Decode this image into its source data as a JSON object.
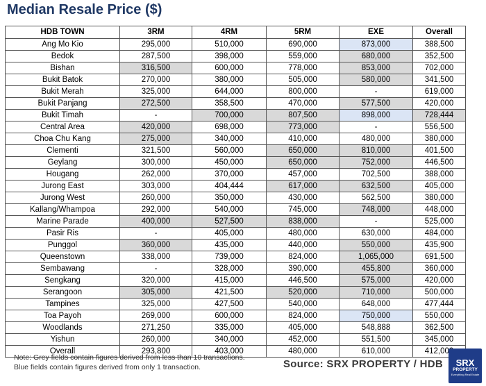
{
  "title": "Median Resale Price ($)",
  "headers": [
    "HDB TOWN",
    "3RM",
    "4RM",
    "5RM",
    "EXE",
    "Overall"
  ],
  "rows": [
    {
      "cells": [
        "Ang Mo Kio",
        "295,000",
        "510,000",
        "690,000",
        "873,000",
        "388,500"
      ],
      "shade": [
        "",
        "",
        "",
        "",
        "blue",
        ""
      ]
    },
    {
      "cells": [
        "Bedok",
        "287,500",
        "398,000",
        "559,000",
        "680,000",
        "352,500"
      ],
      "shade": [
        "",
        "",
        "",
        "",
        "grey",
        ""
      ]
    },
    {
      "cells": [
        "Bishan",
        "316,500",
        "600,000",
        "778,000",
        "853,000",
        "702,000"
      ],
      "shade": [
        "",
        "grey",
        "",
        "",
        "grey",
        ""
      ]
    },
    {
      "cells": [
        "Bukit Batok",
        "270,000",
        "380,000",
        "505,000",
        "580,000",
        "341,500"
      ],
      "shade": [
        "",
        "",
        "",
        "",
        "grey",
        ""
      ]
    },
    {
      "cells": [
        "Bukit Merah",
        "325,000",
        "644,000",
        "800,000",
        "-",
        "619,000"
      ],
      "shade": [
        "",
        "",
        "",
        "",
        "",
        ""
      ]
    },
    {
      "cells": [
        "Bukit Panjang",
        "272,500",
        "358,500",
        "470,000",
        "577,500",
        "420,000"
      ],
      "shade": [
        "",
        "grey",
        "",
        "",
        "grey",
        ""
      ]
    },
    {
      "cells": [
        "Bukit Timah",
        "-",
        "700,000",
        "807,500",
        "898,000",
        "728,444"
      ],
      "shade": [
        "",
        "",
        "grey",
        "grey",
        "blue",
        "grey"
      ]
    },
    {
      "cells": [
        "Central Area",
        "420,000",
        "698,000",
        "773,000",
        "-",
        "556,500"
      ],
      "shade": [
        "",
        "grey",
        "",
        "grey",
        "",
        ""
      ]
    },
    {
      "cells": [
        "Choa Chu Kang",
        "275,000",
        "340,000",
        "410,000",
        "480,000",
        "380,000"
      ],
      "shade": [
        "",
        "grey",
        "",
        "",
        "",
        ""
      ]
    },
    {
      "cells": [
        "Clementi",
        "321,500",
        "560,000",
        "650,000",
        "810,000",
        "401,500"
      ],
      "shade": [
        "",
        "",
        "",
        "grey",
        "grey",
        ""
      ]
    },
    {
      "cells": [
        "Geylang",
        "300,000",
        "450,000",
        "650,000",
        "752,000",
        "446,500"
      ],
      "shade": [
        "",
        "",
        "",
        "grey",
        "grey",
        ""
      ]
    },
    {
      "cells": [
        "Hougang",
        "262,000",
        "370,000",
        "457,000",
        "702,500",
        "388,000"
      ],
      "shade": [
        "",
        "",
        "",
        "",
        "",
        ""
      ]
    },
    {
      "cells": [
        "Jurong East",
        "303,000",
        "404,444",
        "617,000",
        "632,500",
        "405,000"
      ],
      "shade": [
        "",
        "",
        "",
        "grey",
        "grey",
        ""
      ]
    },
    {
      "cells": [
        "Jurong West",
        "260,000",
        "350,000",
        "430,000",
        "562,500",
        "380,000"
      ],
      "shade": [
        "",
        "",
        "",
        "",
        "",
        ""
      ]
    },
    {
      "cells": [
        "Kallang/Whampoa",
        "292,000",
        "540,000",
        "745,000",
        "748,000",
        "448,000"
      ],
      "shade": [
        "",
        "",
        "",
        "",
        "grey",
        ""
      ]
    },
    {
      "cells": [
        "Marine Parade",
        "400,000",
        "527,500",
        "838,000",
        "-",
        "525,000"
      ],
      "shade": [
        "",
        "grey",
        "grey",
        "grey",
        "",
        ""
      ]
    },
    {
      "cells": [
        "Pasir Ris",
        "-",
        "405,000",
        "480,000",
        "630,000",
        "484,000"
      ],
      "shade": [
        "",
        "",
        "",
        "",
        "",
        ""
      ]
    },
    {
      "cells": [
        "Punggol",
        "360,000",
        "435,000",
        "440,000",
        "550,000",
        "435,900"
      ],
      "shade": [
        "",
        "grey",
        "",
        "",
        "grey",
        ""
      ]
    },
    {
      "cells": [
        "Queenstown",
        "338,000",
        "739,000",
        "824,000",
        "1,065,000",
        "691,500"
      ],
      "shade": [
        "",
        "",
        "",
        "",
        "grey",
        ""
      ]
    },
    {
      "cells": [
        "Sembawang",
        "-",
        "328,000",
        "390,000",
        "455,800",
        "360,000"
      ],
      "shade": [
        "",
        "",
        "",
        "",
        "grey",
        ""
      ]
    },
    {
      "cells": [
        "Sengkang",
        "320,000",
        "415,000",
        "446,500",
        "575,000",
        "420,000"
      ],
      "shade": [
        "",
        "",
        "",
        "",
        "grey",
        ""
      ]
    },
    {
      "cells": [
        "Serangoon",
        "305,000",
        "421,500",
        "520,000",
        "710,000",
        "500,000"
      ],
      "shade": [
        "",
        "grey",
        "",
        "grey",
        "grey",
        ""
      ]
    },
    {
      "cells": [
        "Tampines",
        "325,000",
        "427,500",
        "540,000",
        "648,000",
        "477,444"
      ],
      "shade": [
        "",
        "",
        "",
        "",
        "",
        ""
      ]
    },
    {
      "cells": [
        "Toa Payoh",
        "269,000",
        "600,000",
        "824,000",
        "750,000",
        "550,000"
      ],
      "shade": [
        "",
        "",
        "",
        "",
        "blue",
        ""
      ]
    },
    {
      "cells": [
        "Woodlands",
        "271,250",
        "335,000",
        "405,000",
        "548,888",
        "362,500"
      ],
      "shade": [
        "",
        "",
        "",
        "",
        "",
        ""
      ]
    },
    {
      "cells": [
        "Yishun",
        "260,000",
        "340,000",
        "452,000",
        "551,500",
        "345,000"
      ],
      "shade": [
        "",
        "",
        "",
        "",
        "",
        ""
      ]
    },
    {
      "cells": [
        "Overall",
        "293,800",
        "403,000",
        "480,000",
        "610,000",
        "412,000"
      ],
      "shade": [
        "",
        "",
        "",
        "",
        "",
        ""
      ]
    }
  ],
  "notes": [
    "Note: Grey fields contain figures derived from less than 10 transactions.",
    "Blue fields contain figures derived from only 1 transaction."
  ],
  "source": "Source:  SRX PROPERTY / HDB",
  "logo": {
    "line1": "SRX",
    "line2": "PROPERTY",
    "line3": "Everything Real Estate"
  },
  "colors": {
    "title": "#1f3864",
    "grey_field": "#d9d9d9",
    "blue_field": "#dbe5f5",
    "logo_bg": "#1f3c88"
  }
}
